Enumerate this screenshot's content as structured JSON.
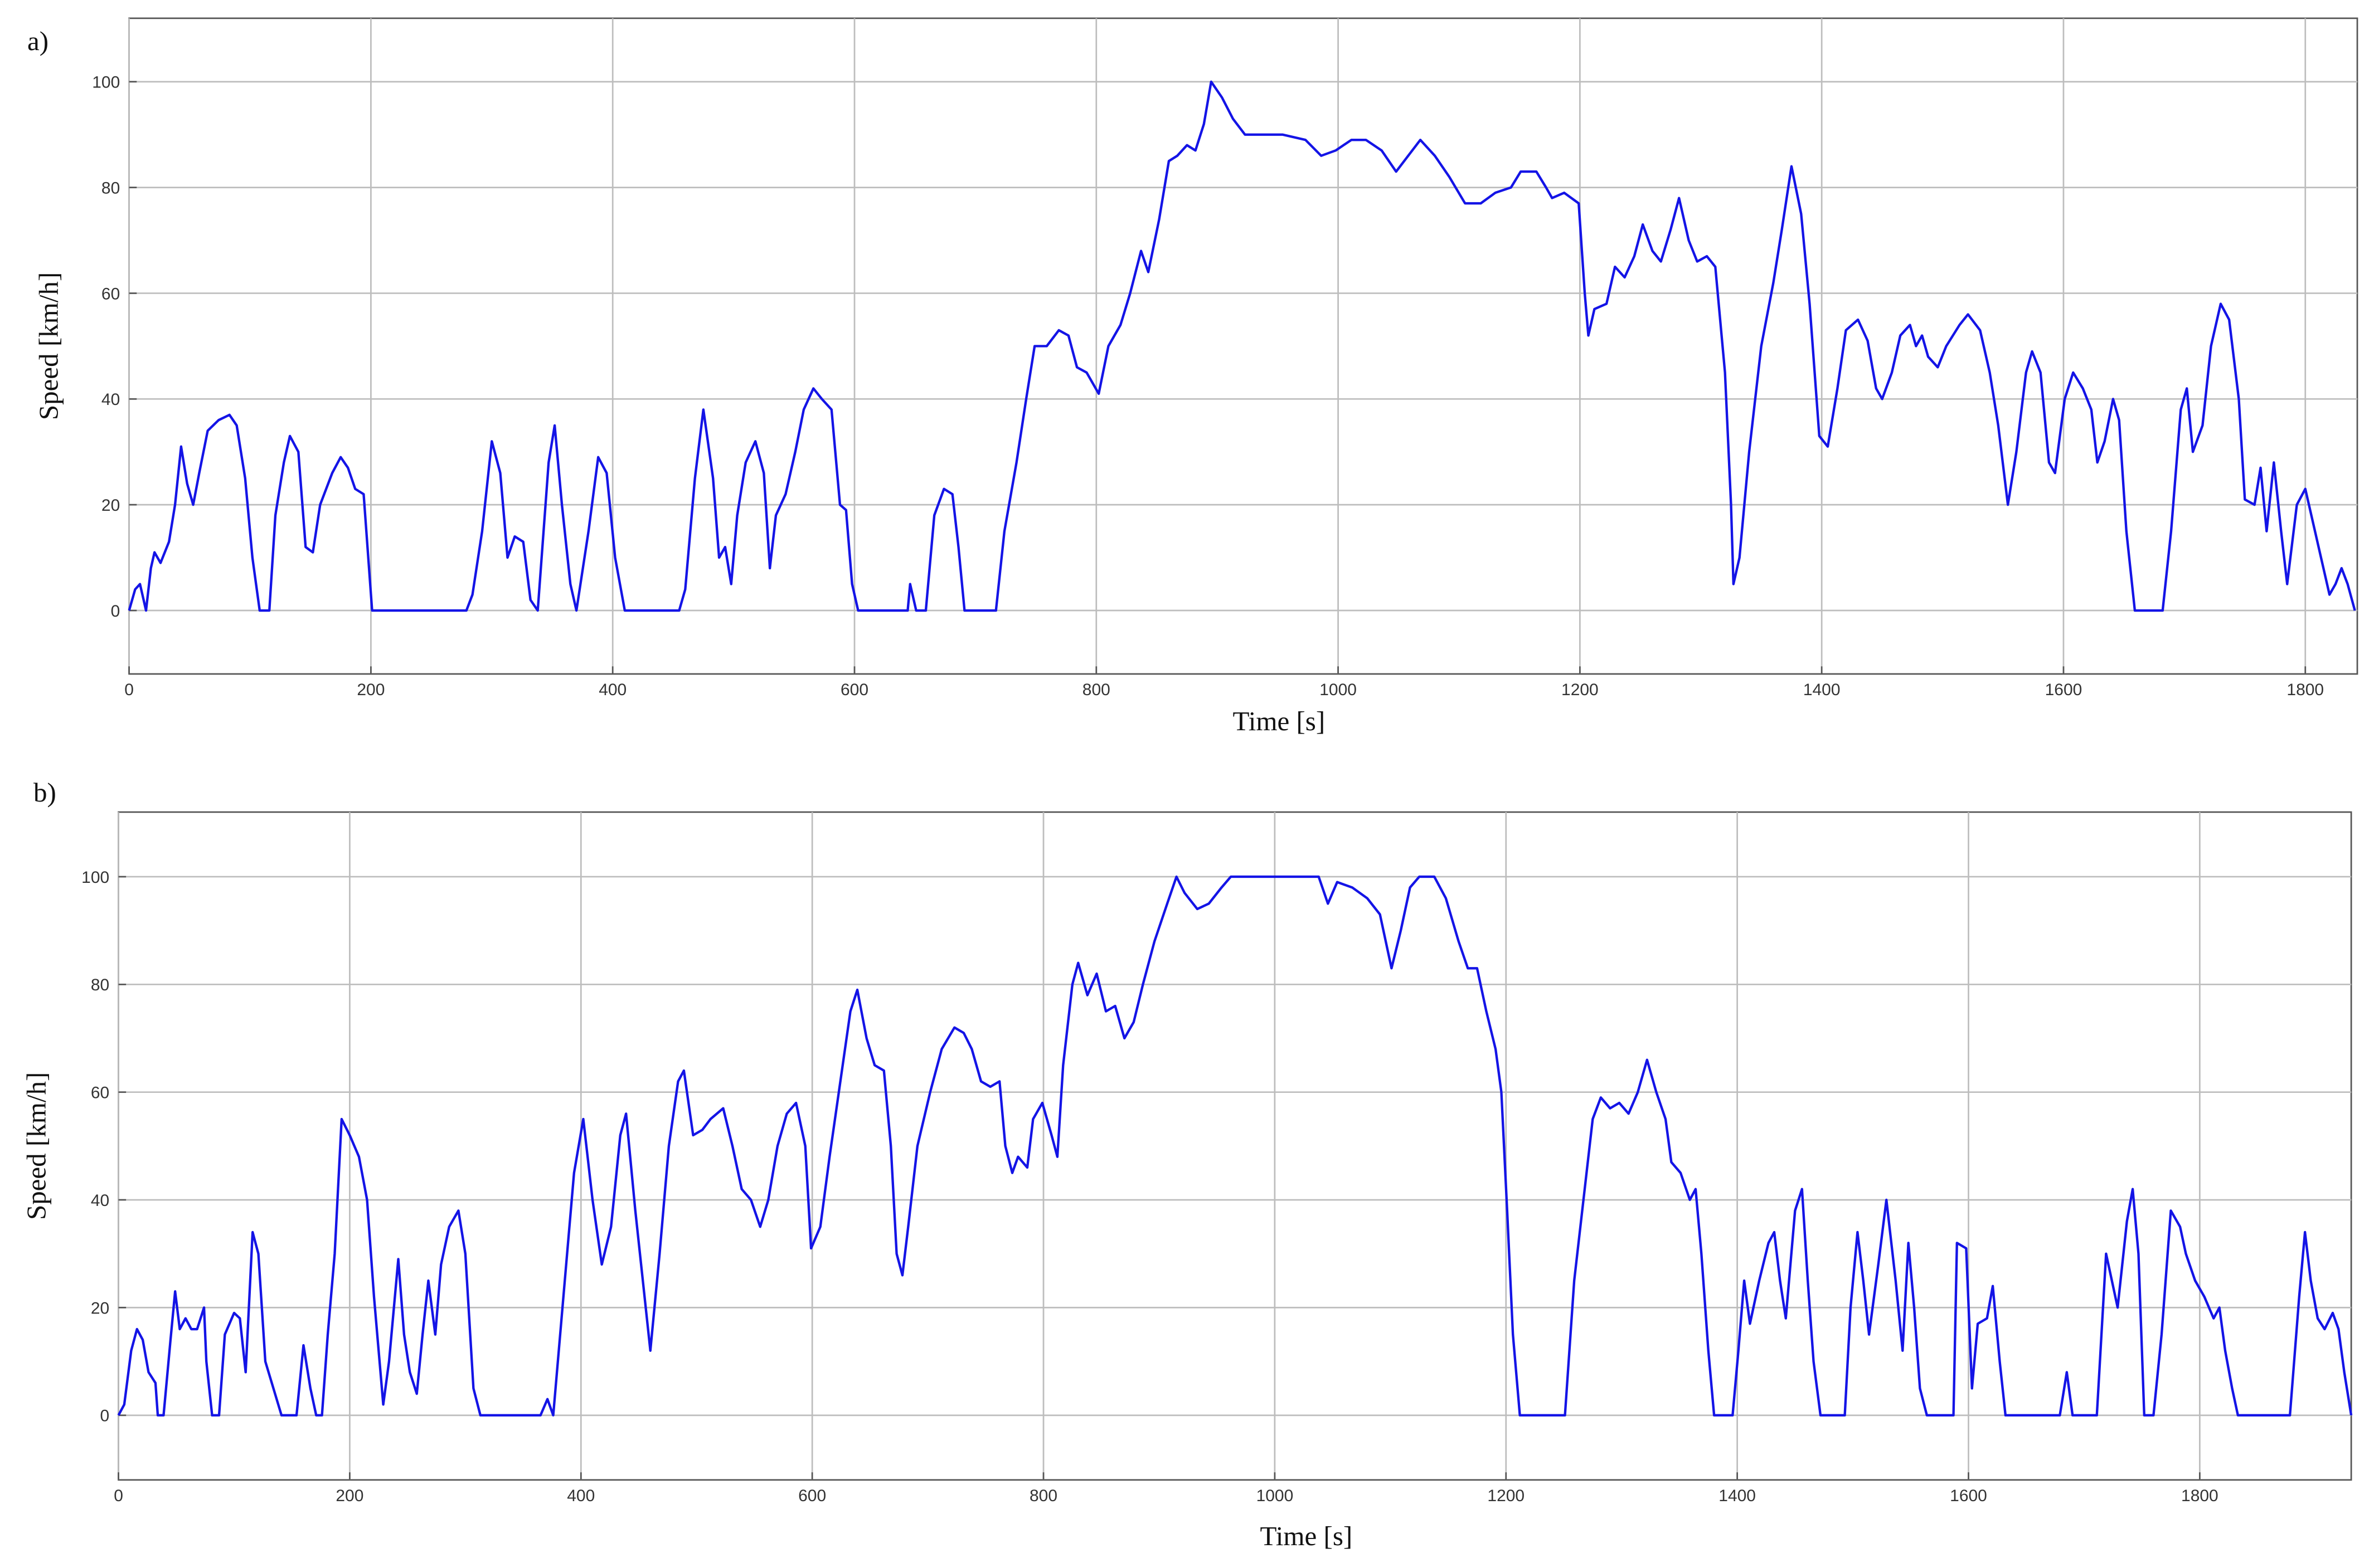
{
  "chart_data": [
    {
      "type": "line",
      "panel_label": "a)",
      "x_label": "Time [s]",
      "y_label": "Speed [km/h]",
      "color": "#1414e6",
      "grid": true,
      "xlim": [
        0,
        1843
      ],
      "ylim": [
        -12,
        112
      ],
      "xticks": [
        0,
        200,
        400,
        600,
        800,
        1000,
        1200,
        1400,
        1600,
        1800
      ],
      "yticks": [
        0,
        20,
        40,
        60,
        80,
        100
      ],
      "x": [
        0,
        5,
        9,
        14,
        18,
        21,
        26,
        33,
        38,
        43,
        48,
        53,
        58,
        65,
        74,
        83,
        89,
        96,
        102,
        108,
        116,
        121,
        128,
        133,
        140,
        146,
        152,
        158,
        168,
        175,
        181,
        187,
        194,
        201,
        279,
        284,
        292,
        300,
        307,
        313,
        319,
        326,
        332,
        338,
        347,
        352,
        358,
        365,
        370,
        380,
        388,
        395,
        402,
        410,
        455,
        460,
        468,
        475,
        483,
        488,
        493,
        498,
        503,
        510,
        518,
        525,
        530,
        535,
        543,
        551,
        558,
        566,
        573,
        581,
        588,
        593,
        598,
        603,
        644,
        646,
        651,
        659,
        666,
        674,
        681,
        686,
        691,
        717,
        724,
        734,
        742,
        749,
        759,
        769,
        777,
        784,
        792,
        802,
        810,
        820,
        828,
        837,
        843,
        852,
        860,
        867,
        875,
        882,
        889,
        895,
        904,
        913,
        923,
        935,
        954,
        973,
        986,
        998,
        1011,
        1023,
        1036,
        1048,
        1058,
        1068,
        1080,
        1092,
        1105,
        1118,
        1130,
        1143,
        1151,
        1164,
        1172,
        1177,
        1187,
        1199,
        1204,
        1207,
        1212,
        1222,
        1229,
        1237,
        1245,
        1252,
        1260,
        1267,
        1275,
        1282,
        1290,
        1297,
        1305,
        1312,
        1320,
        1325,
        1327,
        1332,
        1340,
        1350,
        1360,
        1367,
        1375,
        1383,
        1390,
        1398,
        1405,
        1413,
        1420,
        1430,
        1438,
        1445,
        1450,
        1458,
        1465,
        1473,
        1478,
        1483,
        1488,
        1496,
        1503,
        1514,
        1521,
        1531,
        1539,
        1546,
        1554,
        1561,
        1569,
        1574,
        1581,
        1588,
        1593,
        1601,
        1608,
        1616,
        1623,
        1628,
        1634,
        1641,
        1646,
        1652,
        1659,
        1682,
        1689,
        1697,
        1702,
        1707,
        1715,
        1722,
        1730,
        1737,
        1745,
        1750,
        1758,
        1763,
        1768,
        1774,
        1780,
        1785,
        1793,
        1800,
        1808,
        1813,
        1820,
        1825,
        1830,
        1835,
        1841
      ],
      "values": [
        0,
        4,
        5,
        0,
        8,
        11,
        9,
        13,
        20,
        31,
        24,
        20,
        26,
        34,
        36,
        37,
        35,
        25,
        10,
        0,
        0,
        18,
        28,
        33,
        30,
        12,
        11,
        20,
        26,
        29,
        27,
        23,
        22,
        0,
        0,
        3,
        15,
        32,
        26,
        10,
        14,
        13,
        2,
        0,
        28,
        35,
        20,
        5,
        0,
        15,
        29,
        26,
        10,
        0,
        0,
        4,
        25,
        38,
        25,
        10,
        12,
        5,
        18,
        28,
        32,
        26,
        8,
        18,
        22,
        30,
        38,
        42,
        40,
        38,
        20,
        19,
        5,
        0,
        0,
        5,
        0,
        0,
        18,
        23,
        22,
        12,
        0,
        0,
        15,
        28,
        40,
        50,
        50,
        53,
        52,
        46,
        45,
        41,
        50,
        54,
        60,
        68,
        64,
        74,
        85,
        86,
        88,
        87,
        92,
        100,
        97,
        93,
        90,
        90,
        90,
        89,
        86,
        87,
        89,
        89,
        87,
        83,
        86,
        89,
        86,
        82,
        77,
        77,
        79,
        80,
        83,
        83,
        80,
        78,
        79,
        77,
        60,
        52,
        57,
        58,
        65,
        63,
        67,
        73,
        68,
        66,
        72,
        78,
        70,
        66,
        67,
        65,
        45,
        20,
        5,
        10,
        30,
        50,
        62,
        72,
        84,
        75,
        58,
        33,
        31,
        42,
        53,
        55,
        51,
        42,
        40,
        45,
        52,
        54,
        50,
        52,
        48,
        46,
        50,
        54,
        56,
        53,
        45,
        35,
        20,
        30,
        45,
        49,
        45,
        28,
        26,
        40,
        45,
        42,
        38,
        28,
        32,
        40,
        36,
        15,
        0,
        0,
        15,
        38,
        42,
        30,
        35,
        50,
        58,
        55,
        40,
        21,
        20,
        27,
        15,
        28,
        15,
        5,
        20,
        23,
        15,
        10,
        3,
        5,
        8,
        5,
        0
      ]
    },
    {
      "type": "line",
      "panel_label": "b)",
      "x_label": "Time [s]",
      "y_label": "Speed [km/h]",
      "color": "#1414e6",
      "grid": true,
      "xlim": [
        0,
        1931
      ],
      "ylim": [
        -12,
        112
      ],
      "xticks": [
        0,
        200,
        400,
        600,
        800,
        1000,
        1200,
        1400,
        1600,
        1800
      ],
      "yticks": [
        0,
        20,
        40,
        60,
        80,
        100
      ],
      "x": [
        0,
        5,
        11,
        16,
        21,
        26,
        32,
        34,
        39,
        45,
        49,
        53,
        58,
        63,
        68,
        74,
        76,
        81,
        87,
        92,
        100,
        105,
        110,
        116,
        121,
        127,
        134,
        141,
        154,
        160,
        166,
        171,
        176,
        181,
        187,
        193,
        200,
        208,
        215,
        221,
        229,
        234,
        242,
        247,
        252,
        258,
        263,
        268,
        274,
        279,
        286,
        294,
        300,
        307,
        313,
        365,
        371,
        376,
        386,
        394,
        402,
        410,
        418,
        426,
        434,
        439,
        447,
        452,
        460,
        468,
        476,
        484,
        489,
        497,
        505,
        512,
        523,
        531,
        539,
        547,
        555,
        562,
        570,
        578,
        586,
        594,
        599,
        607,
        615,
        623,
        633,
        639,
        647,
        654,
        662,
        668,
        673,
        678,
        683,
        691,
        702,
        712,
        723,
        731,
        738,
        746,
        754,
        762,
        767,
        773,
        778,
        786,
        791,
        799,
        807,
        812,
        817,
        825,
        830,
        838,
        846,
        854,
        862,
        870,
        878,
        886,
        896,
        907,
        915,
        922,
        933,
        943,
        954,
        962,
        988,
        1014,
        1038,
        1046,
        1054,
        1067,
        1080,
        1091,
        1101,
        1109,
        1117,
        1125,
        1138,
        1148,
        1159,
        1167,
        1175,
        1183,
        1191,
        1196,
        1201,
        1206,
        1212,
        1251,
        1259,
        1267,
        1275,
        1282,
        1290,
        1298,
        1306,
        1314,
        1322,
        1330,
        1338,
        1343,
        1351,
        1359,
        1364,
        1369,
        1375,
        1380,
        1396,
        1401,
        1406,
        1411,
        1419,
        1427,
        1432,
        1437,
        1442,
        1450,
        1456,
        1461,
        1466,
        1472,
        1493,
        1498,
        1504,
        1509,
        1514,
        1522,
        1529,
        1537,
        1543,
        1548,
        1553,
        1558,
        1564,
        1587,
        1590,
        1598,
        1603,
        1608,
        1616,
        1621,
        1627,
        1632,
        1679,
        1685,
        1690,
        1711,
        1719,
        1724,
        1729,
        1737,
        1742,
        1747,
        1752,
        1760,
        1767,
        1775,
        1783,
        1788,
        1796,
        1804,
        1812,
        1817,
        1822,
        1828,
        1833,
        1878,
        1886,
        1891,
        1896,
        1902,
        1908,
        1915,
        1920,
        1925,
        1931
      ],
      "values": [
        0,
        2,
        12,
        16,
        14,
        8,
        6,
        0,
        0,
        14,
        23,
        16,
        18,
        16,
        16,
        20,
        10,
        0,
        0,
        15,
        19,
        18,
        8,
        34,
        30,
        10,
        5,
        0,
        0,
        13,
        5,
        0,
        0,
        15,
        30,
        55,
        52,
        48,
        40,
        22,
        2,
        10,
        29,
        15,
        8,
        4,
        15,
        25,
        15,
        28,
        35,
        38,
        30,
        5,
        0,
        0,
        3,
        0,
        25,
        45,
        55,
        40,
        28,
        35,
        52,
        56,
        38,
        28,
        12,
        30,
        50,
        62,
        64,
        52,
        53,
        55,
        57,
        50,
        42,
        40,
        35,
        40,
        50,
        56,
        58,
        50,
        31,
        35,
        48,
        60,
        75,
        79,
        70,
        65,
        64,
        50,
        30,
        26,
        35,
        50,
        60,
        68,
        72,
        71,
        68,
        62,
        61,
        62,
        50,
        45,
        48,
        46,
        55,
        58,
        52,
        48,
        65,
        80,
        84,
        78,
        82,
        75,
        76,
        70,
        73,
        80,
        88,
        95,
        100,
        97,
        94,
        95,
        98,
        100,
        100,
        100,
        100,
        95,
        99,
        98,
        96,
        93,
        83,
        90,
        98,
        100,
        100,
        96,
        88,
        83,
        83,
        75,
        68,
        60,
        38,
        15,
        0,
        0,
        25,
        40,
        55,
        59,
        57,
        58,
        56,
        60,
        66,
        60,
        55,
        47,
        45,
        40,
        42,
        30,
        12,
        0,
        0,
        12,
        25,
        17,
        25,
        32,
        34,
        25,
        18,
        38,
        42,
        25,
        10,
        0,
        0,
        20,
        34,
        25,
        15,
        28,
        40,
        25,
        12,
        32,
        20,
        5,
        0,
        0,
        32,
        31,
        5,
        17,
        18,
        24,
        10,
        0,
        0,
        8,
        0,
        0,
        30,
        25,
        20,
        36,
        42,
        30,
        0,
        0,
        15,
        38,
        35,
        30,
        25,
        22,
        18,
        20,
        12,
        5,
        0,
        0,
        22,
        34,
        25,
        18,
        16,
        19,
        16,
        8,
        0
      ]
    }
  ]
}
